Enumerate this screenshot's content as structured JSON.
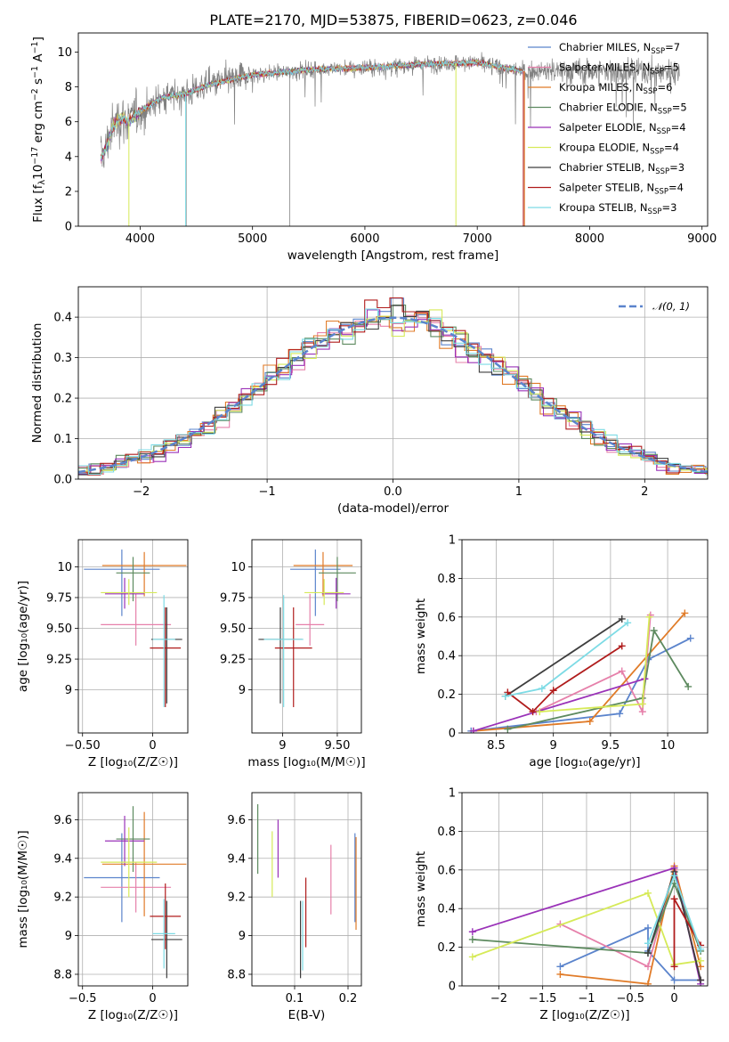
{
  "figure": {
    "title": "PLATE=2170, MJD=53875, FIBERID=0623, z=0.046"
  },
  "series": [
    {
      "label": "Chabrier MILES, N",
      "sub": "SSP",
      "suffix": "=7",
      "color": "#5b84cc"
    },
    {
      "label": "Salpeter MILES, N",
      "sub": "SSP",
      "suffix": "=5",
      "color": "#e680aa"
    },
    {
      "label": "Kroupa MILES, N",
      "sub": "SSP",
      "suffix": "=6",
      "color": "#e07b28"
    },
    {
      "label": "Chabrier ELODIE, N",
      "sub": "SSP",
      "suffix": "=5",
      "color": "#5d8a5f"
    },
    {
      "label": "Salpeter ELODIE, N",
      "sub": "SSP",
      "suffix": "=4",
      "color": "#9a32b8"
    },
    {
      "label": "Kroupa ELODIE, N",
      "sub": "SSP",
      "suffix": "=4",
      "color": "#d6ea58"
    },
    {
      "label": "Chabrier STELIB, N",
      "sub": "SSP",
      "suffix": "=3",
      "color": "#3e3e3e"
    },
    {
      "label": "Salpeter STELIB, N",
      "sub": "SSP",
      "suffix": "=4",
      "color": "#b01c1c"
    },
    {
      "label": "Kroupa STELIB, N",
      "sub": "SSP",
      "suffix": "=3",
      "color": "#7ddbe5"
    }
  ],
  "chart_data": [
    {
      "id": "spectrum",
      "type": "line",
      "xlabel": "wavelength [Angstrom, rest frame]",
      "ylabel_parts": [
        "Flux [f",
        "λ",
        "10",
        "−17",
        " erg cm",
        "−2",
        " s",
        "−1",
        " A",
        "−1",
        "]"
      ],
      "xlim": [
        3450,
        9050
      ],
      "ylim": [
        0,
        11.1
      ],
      "xticks": [
        4000,
        5000,
        6000,
        7000,
        8000,
        9000
      ],
      "yticks": [
        0,
        2,
        4,
        6,
        8,
        10
      ],
      "data_color": "#808080",
      "continuum": {
        "x": [
          3650,
          3700,
          3750,
          3800,
          3850,
          3900,
          4000,
          4100,
          4200,
          4300,
          4400,
          4600,
          4800,
          5000,
          5200,
          5500,
          6000,
          6500,
          7000,
          7400
        ],
        "y": [
          3.9,
          4.6,
          5.6,
          6.1,
          6.2,
          6.0,
          6.6,
          7.0,
          7.4,
          7.5,
          7.6,
          8.1,
          8.4,
          8.7,
          8.8,
          9.0,
          9.1,
          9.3,
          9.4,
          8.9
        ]
      },
      "data_xrange": [
        3650,
        8800
      ],
      "model_xrange": [
        3650,
        7400
      ],
      "grid": false
    },
    {
      "id": "residual-hist",
      "type": "histogram",
      "xlabel": "(data-model)/error",
      "ylabel": "Normed distribution",
      "xlim": [
        -2.5,
        2.5
      ],
      "ylim": [
        0,
        0.475
      ],
      "xticks": [
        -2,
        -1,
        0,
        1,
        2
      ],
      "yticks": [
        0.0,
        0.1,
        0.2,
        0.3,
        0.4
      ],
      "bin_width": 0.1,
      "legend": "𝒩(0, 1)",
      "legend_position": "upper right",
      "reference_curve": {
        "type": "normal",
        "mean": 0,
        "sd": 1,
        "color": "#5b84cc"
      },
      "grid": true
    },
    {
      "id": "age-vs-Z",
      "type": "errorbar",
      "xlabel": "Z [log₁₀(Z/Z☉)]",
      "ylabel": "age  [log₁₀(age/yr)]",
      "xlim": [
        -0.53,
        0.25
      ],
      "ylim": [
        8.65,
        10.22
      ],
      "xticks": [
        -0.5,
        0.0
      ],
      "yticks": [
        9.0,
        9.25,
        9.5,
        9.75,
        10.0
      ],
      "points": [
        {
          "x": -0.22,
          "xerr": 0.27,
          "y": 9.98,
          "yerr": [
            0.38,
            0.16
          ]
        },
        {
          "x": -0.12,
          "xerr": 0.25,
          "y": 9.53,
          "yerr": [
            0.17,
            0.25
          ]
        },
        {
          "x": -0.06,
          "xerr": 0.3,
          "y": 10.01,
          "yerr": [
            0.25,
            0.11
          ]
        },
        {
          "x": -0.14,
          "xerr": 0.12,
          "y": 9.95,
          "yerr": [
            0.23,
            0.13
          ]
        },
        {
          "x": -0.2,
          "xerr": 0.14,
          "y": 9.78,
          "yerr": [
            0.12,
            0.13
          ]
        },
        {
          "x": -0.17,
          "xerr": 0.2,
          "y": 9.79,
          "yerr": [
            0.1,
            0.11
          ]
        },
        {
          "x": 0.1,
          "xerr": 0.11,
          "y": 9.41,
          "yerr": [
            0.52,
            0.26
          ]
        },
        {
          "x": 0.09,
          "xerr": 0.11,
          "y": 9.34,
          "yerr": [
            0.48,
            0.33
          ]
        },
        {
          "x": 0.08,
          "xerr": 0.08,
          "y": 9.41,
          "yerr": [
            0.55,
            0.36
          ]
        }
      ],
      "grid": true
    },
    {
      "id": "age-vs-mass",
      "type": "errorbar",
      "xlabel": "mass [log₁₀(M/M☉)]",
      "ylabel": "",
      "xlim": [
        8.72,
        9.72
      ],
      "ylim": [
        8.65,
        10.22
      ],
      "xticks": [
        9.0,
        9.5
      ],
      "yticks": [
        9.0,
        9.25,
        9.5,
        9.75,
        10.0
      ],
      "points": [
        {
          "x": 9.3,
          "xerr": 0.23,
          "y": 9.98,
          "yerr": [
            0.38,
            0.16
          ]
        },
        {
          "x": 9.25,
          "xerr": 0.13,
          "y": 9.53,
          "yerr": [
            0.17,
            0.25
          ]
        },
        {
          "x": 9.37,
          "xerr": 0.27,
          "y": 10.01,
          "yerr": [
            0.25,
            0.11
          ]
        },
        {
          "x": 9.5,
          "xerr": 0.17,
          "y": 9.95,
          "yerr": [
            0.23,
            0.13
          ]
        },
        {
          "x": 9.49,
          "xerr": 0.13,
          "y": 9.78,
          "yerr": [
            0.12,
            0.13
          ]
        },
        {
          "x": 9.38,
          "xerr": 0.18,
          "y": 9.79,
          "yerr": [
            0.1,
            0.11
          ]
        },
        {
          "x": 8.98,
          "xerr": 0.2,
          "y": 9.41,
          "yerr": [
            0.52,
            0.26
          ]
        },
        {
          "x": 9.1,
          "xerr": 0.17,
          "y": 9.34,
          "yerr": [
            0.48,
            0.33
          ]
        },
        {
          "x": 9.01,
          "xerr": 0.18,
          "y": 9.41,
          "yerr": [
            0.55,
            0.36
          ]
        }
      ],
      "grid": true
    },
    {
      "id": "weight-vs-age",
      "type": "line",
      "xlabel": "age  [log₁₀(age/yr)]",
      "ylabel": "mass weight",
      "xlim": [
        8.2,
        10.35
      ],
      "ylim": [
        0,
        1.0
      ],
      "xticks": [
        8.5,
        9.0,
        9.5,
        10.0
      ],
      "yticks": [
        0.0,
        0.2,
        0.4,
        0.6,
        0.8,
        1.0
      ],
      "lines": [
        {
          "x": [
            8.28,
            9.58,
            9.83,
            10.2
          ],
          "y": [
            0.01,
            0.1,
            0.38,
            0.49
          ]
        },
        {
          "x": [
            8.85,
            9.6,
            9.78,
            9.85
          ],
          "y": [
            0.11,
            0.32,
            0.11,
            0.61
          ]
        },
        {
          "x": [
            8.3,
            9.32,
            10.15
          ],
          "y": [
            0.01,
            0.06,
            0.62
          ]
        },
        {
          "x": [
            8.6,
            9.78,
            9.88,
            10.18
          ],
          "y": [
            0.02,
            0.18,
            0.53,
            0.24
          ]
        },
        {
          "x": [
            8.3,
            9.8
          ],
          "y": [
            0.01,
            0.28
          ]
        },
        {
          "x": [
            8.88,
            9.78,
            9.84
          ],
          "y": [
            0.11,
            0.15,
            0.6
          ]
        },
        {
          "x": [
            8.58,
            9.6
          ],
          "y": [
            0.19,
            0.59
          ]
        },
        {
          "x": [
            8.6,
            8.82,
            9.0,
            9.6
          ],
          "y": [
            0.21,
            0.11,
            0.22,
            0.45
          ]
        },
        {
          "x": [
            8.58,
            8.9,
            9.65
          ],
          "y": [
            0.19,
            0.23,
            0.57
          ]
        }
      ],
      "grid": true
    },
    {
      "id": "mass-vs-Z",
      "type": "errorbar",
      "xlabel": "Z [log₁₀(Z/Z☉)]",
      "ylabel": "mass [log₁₀(M/M☉)]",
      "xlim": [
        -0.53,
        0.25
      ],
      "ylim": [
        8.74,
        9.74
      ],
      "xticks": [
        -0.5,
        0.0
      ],
      "yticks": [
        8.8,
        9.0,
        9.2,
        9.4,
        9.6
      ],
      "points": [
        {
          "x": -0.22,
          "xerr": 0.27,
          "y": 9.3,
          "yerr": 0.23
        },
        {
          "x": -0.12,
          "xerr": 0.25,
          "y": 9.25,
          "yerr": 0.13
        },
        {
          "x": -0.06,
          "xerr": 0.3,
          "y": 9.37,
          "yerr": 0.27
        },
        {
          "x": -0.14,
          "xerr": 0.12,
          "y": 9.5,
          "yerr": 0.17
        },
        {
          "x": -0.2,
          "xerr": 0.14,
          "y": 9.49,
          "yerr": 0.13
        },
        {
          "x": -0.17,
          "xerr": 0.2,
          "y": 9.38,
          "yerr": 0.18
        },
        {
          "x": 0.1,
          "xerr": 0.11,
          "y": 8.98,
          "yerr": 0.2
        },
        {
          "x": 0.09,
          "xerr": 0.11,
          "y": 9.1,
          "yerr": 0.17
        },
        {
          "x": 0.08,
          "xerr": 0.08,
          "y": 9.01,
          "yerr": 0.18
        }
      ],
      "grid": true
    },
    {
      "id": "mass-vs-ebv",
      "type": "errorbar",
      "xlabel": "E(B-V)",
      "ylabel": "",
      "xlim": [
        0.02,
        0.225
      ],
      "ylim": [
        8.74,
        9.74
      ],
      "xticks": [
        0.1,
        0.2
      ],
      "yticks": [
        8.8,
        9.0,
        9.2,
        9.4,
        9.6
      ],
      "points": [
        {
          "x": 0.213,
          "y": 9.3,
          "yerr": 0.23
        },
        {
          "x": 0.168,
          "y": 9.29,
          "yerr": 0.18
        },
        {
          "x": 0.215,
          "y": 9.27,
          "yerr": 0.24
        },
        {
          "x": 0.031,
          "y": 9.5,
          "yerr": 0.18
        },
        {
          "x": 0.069,
          "y": 9.45,
          "yerr": 0.15
        },
        {
          "x": 0.058,
          "y": 9.37,
          "yerr": 0.17
        },
        {
          "x": 0.111,
          "y": 8.98,
          "yerr": 0.2
        },
        {
          "x": 0.121,
          "y": 9.12,
          "yerr": 0.18
        },
        {
          "x": 0.115,
          "y": 9.0,
          "yerr": 0.18
        }
      ],
      "grid": true
    },
    {
      "id": "weight-vs-Z",
      "type": "line",
      "xlabel": "Z [log₁₀(Z/Z☉)]",
      "ylabel": "mass weight",
      "xlim": [
        -2.42,
        0.38
      ],
      "ylim": [
        0,
        1.0
      ],
      "xticks": [
        -2.0,
        -1.5,
        -1.0,
        -0.5,
        0.0
      ],
      "yticks": [
        0.0,
        0.2,
        0.4,
        0.6,
        0.8,
        1.0
      ],
      "lines": [
        {
          "x": [
            -1.3,
            -0.3,
            -0.3,
            0.0,
            0.3
          ],
          "y": [
            0.1,
            0.3,
            0.18,
            0.03,
            0.03
          ]
        },
        {
          "x": [
            -1.3,
            -0.3,
            0.0,
            0.3
          ],
          "y": [
            0.32,
            0.1,
            0.6,
            0.03
          ]
        },
        {
          "x": [
            -1.3,
            -0.3,
            0.0,
            0.3
          ],
          "y": [
            0.06,
            0.01,
            0.62,
            0.1
          ]
        },
        {
          "x": [
            -2.3,
            -0.3,
            0.0,
            0.3
          ],
          "y": [
            0.24,
            0.17,
            0.53,
            0.18
          ]
        },
        {
          "x": [
            -2.3,
            0.0,
            0.3
          ],
          "y": [
            0.28,
            0.61,
            0.01
          ]
        },
        {
          "x": [
            -2.3,
            -0.3,
            0.0,
            0.3
          ],
          "y": [
            0.15,
            0.48,
            0.11,
            0.13
          ]
        },
        {
          "x": [
            -0.3,
            0.0,
            0.3
          ],
          "y": [
            0.17,
            0.59,
            0.03
          ]
        },
        {
          "x": [
            0.0,
            0.0,
            0.3
          ],
          "y": [
            0.1,
            0.45,
            0.21
          ]
        },
        {
          "x": [
            -0.3,
            0.0,
            0.3
          ],
          "y": [
            0.22,
            0.57,
            0.19
          ]
        }
      ],
      "grid": true
    }
  ]
}
